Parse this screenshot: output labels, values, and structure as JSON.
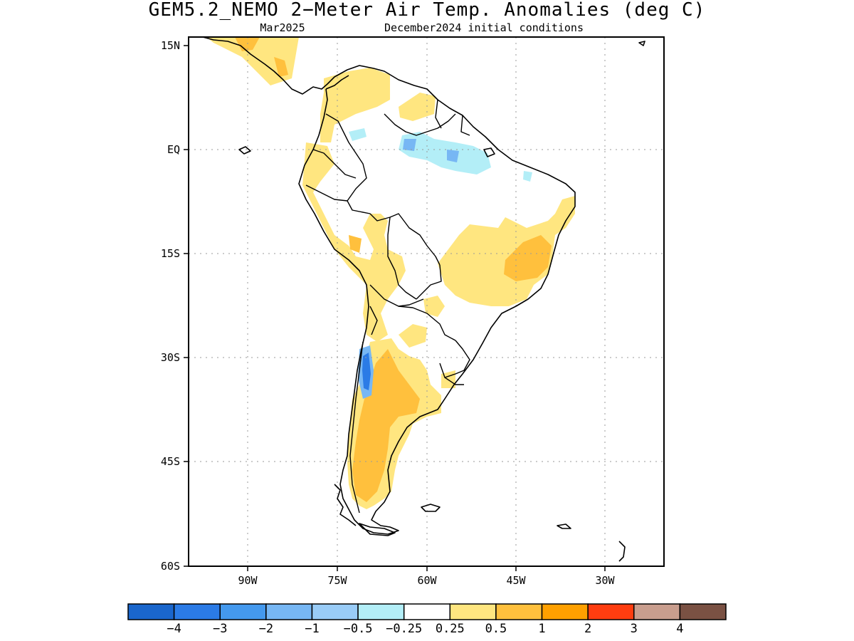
{
  "title": "GEM5.2_NEMO 2−Meter Air Temp. Anomalies (deg C)",
  "subtitle_left": "Mar2025",
  "subtitle_right": "December2024 initial conditions",
  "axes": {
    "lat_ticks": [
      "15N",
      "EQ",
      "15S",
      "30S",
      "45S",
      "60S"
    ],
    "lon_ticks": [
      "90W",
      "75W",
      "60W",
      "45W",
      "30W"
    ],
    "lat_range": [
      -60,
      15
    ],
    "lon_range": [
      -100,
      -20
    ],
    "grid": "dotted"
  },
  "colorbar": {
    "colors": [
      "#1a66cc",
      "#2b7be6",
      "#4499ee",
      "#77b7f4",
      "#99ccf7",
      "#b3eef7",
      "#ffffff",
      "#ffe680",
      "#ffc03d",
      "#ffa000",
      "#ff3d10",
      "#c99e8e",
      "#7a5143"
    ],
    "labels": [
      "−4",
      "−3",
      "−2",
      "−1",
      "−0.5",
      "−0.25",
      "0.25",
      "0.5",
      "1",
      "2",
      "3",
      "4"
    ]
  },
  "map_colors": {
    "land_outline": "#000000",
    "weak_warm": "#ffe680",
    "warm": "#ffc03d",
    "weak_cool": "#b3eef7",
    "cool": "#77b7f4",
    "cold": "#2b7be6"
  }
}
